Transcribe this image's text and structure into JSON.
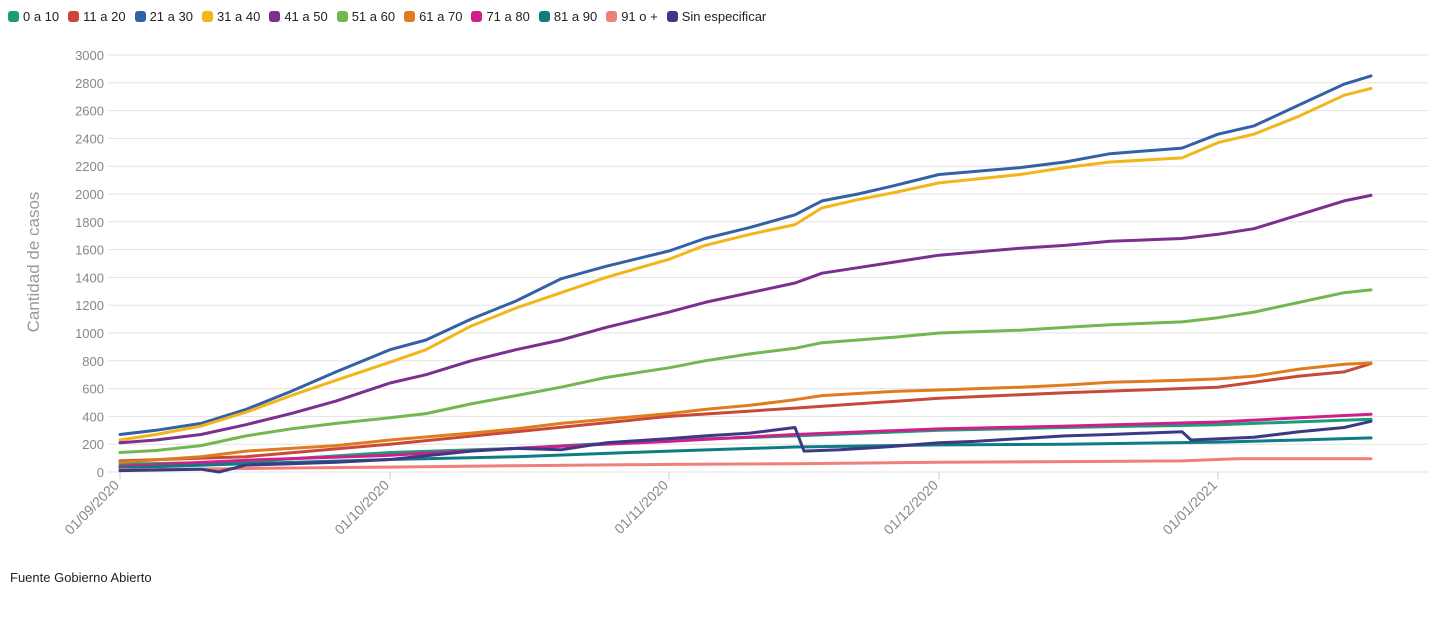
{
  "source_note": "Fuente Gobierno Abierto",
  "chart_data": {
    "type": "line",
    "title": "",
    "ylabel": "Cantidad de casos",
    "xlabel": "",
    "ylim": [
      0,
      3000
    ],
    "y_ticks": [
      0,
      200,
      400,
      600,
      800,
      1000,
      1200,
      1400,
      1600,
      1800,
      2000,
      2200,
      2400,
      2600,
      2800,
      3000
    ],
    "x_range": [
      "2020-09-01",
      "2021-01-18"
    ],
    "x_ticks": [
      "01/09/2020",
      "01/10/2020",
      "01/11/2020",
      "01/12/2020",
      "01/01/2021"
    ],
    "x_tick_dates": [
      "2020-09-01",
      "2020-10-01",
      "2020-11-01",
      "2020-12-01",
      "2021-01-01"
    ],
    "grid": true,
    "legend_position": "top-left",
    "series": [
      {
        "name": "0 a 10",
        "color": "#1a9e77",
        "points": [
          [
            "2020-09-01",
            55
          ],
          [
            "2020-09-15",
            75
          ],
          [
            "2020-10-01",
            140
          ],
          [
            "2020-10-15",
            170
          ],
          [
            "2020-11-01",
            230
          ],
          [
            "2020-11-15",
            260
          ],
          [
            "2020-12-01",
            300
          ],
          [
            "2020-12-15",
            320
          ],
          [
            "2021-01-01",
            340
          ],
          [
            "2021-01-18",
            380
          ]
        ]
      },
      {
        "name": "11 a 20",
        "color": "#c8493a",
        "points": [
          [
            "2020-09-01",
            80
          ],
          [
            "2020-09-15",
            110
          ],
          [
            "2020-10-01",
            200
          ],
          [
            "2020-10-15",
            290
          ],
          [
            "2020-11-01",
            400
          ],
          [
            "2020-11-15",
            460
          ],
          [
            "2020-12-01",
            530
          ],
          [
            "2020-12-15",
            570
          ],
          [
            "2021-01-01",
            610
          ],
          [
            "2021-01-10",
            690
          ],
          [
            "2021-01-15",
            720
          ],
          [
            "2021-01-18",
            780
          ]
        ]
      },
      {
        "name": "21 a 30",
        "color": "#3461a6",
        "points": [
          [
            "2020-09-01",
            270
          ],
          [
            "2020-09-05",
            300
          ],
          [
            "2020-09-10",
            350
          ],
          [
            "2020-09-15",
            450
          ],
          [
            "2020-09-20",
            580
          ],
          [
            "2020-09-25",
            720
          ],
          [
            "2020-10-01",
            880
          ],
          [
            "2020-10-05",
            950
          ],
          [
            "2020-10-10",
            1100
          ],
          [
            "2020-10-15",
            1230
          ],
          [
            "2020-10-20",
            1390
          ],
          [
            "2020-10-25",
            1480
          ],
          [
            "2020-11-01",
            1590
          ],
          [
            "2020-11-05",
            1680
          ],
          [
            "2020-11-10",
            1760
          ],
          [
            "2020-11-15",
            1850
          ],
          [
            "2020-11-18",
            1950
          ],
          [
            "2020-11-22",
            2000
          ],
          [
            "2020-11-26",
            2060
          ],
          [
            "2020-12-01",
            2140
          ],
          [
            "2020-12-10",
            2190
          ],
          [
            "2020-12-15",
            2230
          ],
          [
            "2020-12-20",
            2290
          ],
          [
            "2020-12-28",
            2330
          ],
          [
            "2021-01-01",
            2430
          ],
          [
            "2021-01-05",
            2490
          ],
          [
            "2021-01-10",
            2640
          ],
          [
            "2021-01-15",
            2790
          ],
          [
            "2021-01-18",
            2850
          ]
        ]
      },
      {
        "name": "31 a 40",
        "color": "#f2b51c",
        "points": [
          [
            "2020-09-01",
            230
          ],
          [
            "2020-09-05",
            270
          ],
          [
            "2020-09-10",
            330
          ],
          [
            "2020-09-15",
            430
          ],
          [
            "2020-09-20",
            550
          ],
          [
            "2020-09-25",
            660
          ],
          [
            "2020-10-01",
            790
          ],
          [
            "2020-10-05",
            880
          ],
          [
            "2020-10-10",
            1050
          ],
          [
            "2020-10-15",
            1180
          ],
          [
            "2020-10-20",
            1290
          ],
          [
            "2020-10-25",
            1400
          ],
          [
            "2020-11-01",
            1530
          ],
          [
            "2020-11-05",
            1630
          ],
          [
            "2020-11-10",
            1710
          ],
          [
            "2020-11-15",
            1780
          ],
          [
            "2020-11-18",
            1900
          ],
          [
            "2020-11-22",
            1960
          ],
          [
            "2020-11-26",
            2010
          ],
          [
            "2020-12-01",
            2080
          ],
          [
            "2020-12-10",
            2140
          ],
          [
            "2020-12-15",
            2190
          ],
          [
            "2020-12-20",
            2230
          ],
          [
            "2020-12-28",
            2260
          ],
          [
            "2021-01-01",
            2370
          ],
          [
            "2021-01-05",
            2430
          ],
          [
            "2021-01-10",
            2560
          ],
          [
            "2021-01-15",
            2710
          ],
          [
            "2021-01-18",
            2760
          ]
        ]
      },
      {
        "name": "41 a 50",
        "color": "#7b2f8e",
        "points": [
          [
            "2020-09-01",
            210
          ],
          [
            "2020-09-05",
            230
          ],
          [
            "2020-09-10",
            270
          ],
          [
            "2020-09-15",
            340
          ],
          [
            "2020-09-20",
            420
          ],
          [
            "2020-09-25",
            510
          ],
          [
            "2020-10-01",
            640
          ],
          [
            "2020-10-05",
            700
          ],
          [
            "2020-10-10",
            800
          ],
          [
            "2020-10-15",
            880
          ],
          [
            "2020-10-20",
            950
          ],
          [
            "2020-10-25",
            1040
          ],
          [
            "2020-11-01",
            1150
          ],
          [
            "2020-11-05",
            1220
          ],
          [
            "2020-11-10",
            1290
          ],
          [
            "2020-11-15",
            1360
          ],
          [
            "2020-11-18",
            1430
          ],
          [
            "2020-11-22",
            1470
          ],
          [
            "2020-11-26",
            1510
          ],
          [
            "2020-12-01",
            1560
          ],
          [
            "2020-12-10",
            1610
          ],
          [
            "2020-12-15",
            1630
          ],
          [
            "2020-12-20",
            1660
          ],
          [
            "2020-12-28",
            1680
          ],
          [
            "2021-01-01",
            1710
          ],
          [
            "2021-01-05",
            1750
          ],
          [
            "2021-01-10",
            1850
          ],
          [
            "2021-01-15",
            1950
          ],
          [
            "2021-01-18",
            1990
          ]
        ]
      },
      {
        "name": "51 a 60",
        "color": "#72b84f",
        "points": [
          [
            "2020-09-01",
            140
          ],
          [
            "2020-09-05",
            155
          ],
          [
            "2020-09-10",
            190
          ],
          [
            "2020-09-15",
            260
          ],
          [
            "2020-09-20",
            310
          ],
          [
            "2020-09-25",
            350
          ],
          [
            "2020-10-01",
            390
          ],
          [
            "2020-10-05",
            420
          ],
          [
            "2020-10-10",
            490
          ],
          [
            "2020-10-15",
            550
          ],
          [
            "2020-10-20",
            610
          ],
          [
            "2020-10-25",
            680
          ],
          [
            "2020-11-01",
            750
          ],
          [
            "2020-11-05",
            800
          ],
          [
            "2020-11-10",
            850
          ],
          [
            "2020-11-15",
            890
          ],
          [
            "2020-11-18",
            930
          ],
          [
            "2020-11-22",
            950
          ],
          [
            "2020-11-26",
            970
          ],
          [
            "2020-12-01",
            1000
          ],
          [
            "2020-12-10",
            1020
          ],
          [
            "2020-12-15",
            1040
          ],
          [
            "2020-12-20",
            1060
          ],
          [
            "2020-12-28",
            1080
          ],
          [
            "2021-01-01",
            1110
          ],
          [
            "2021-01-05",
            1150
          ],
          [
            "2021-01-10",
            1220
          ],
          [
            "2021-01-15",
            1290
          ],
          [
            "2021-01-18",
            1310
          ]
        ]
      },
      {
        "name": "61 a 70",
        "color": "#e07b1f",
        "points": [
          [
            "2020-09-01",
            70
          ],
          [
            "2020-09-10",
            110
          ],
          [
            "2020-09-15",
            150
          ],
          [
            "2020-09-25",
            190
          ],
          [
            "2020-10-01",
            230
          ],
          [
            "2020-10-10",
            280
          ],
          [
            "2020-10-15",
            310
          ],
          [
            "2020-10-20",
            350
          ],
          [
            "2020-10-25",
            380
          ],
          [
            "2020-11-01",
            420
          ],
          [
            "2020-11-05",
            450
          ],
          [
            "2020-11-10",
            480
          ],
          [
            "2020-11-15",
            520
          ],
          [
            "2020-11-18",
            550
          ],
          [
            "2020-11-22",
            565
          ],
          [
            "2020-11-26",
            580
          ],
          [
            "2020-12-01",
            590
          ],
          [
            "2020-12-10",
            610
          ],
          [
            "2020-12-15",
            625
          ],
          [
            "2020-12-20",
            645
          ],
          [
            "2020-12-28",
            660
          ],
          [
            "2021-01-01",
            670
          ],
          [
            "2021-01-05",
            690
          ],
          [
            "2021-01-10",
            740
          ],
          [
            "2021-01-15",
            775
          ],
          [
            "2021-01-18",
            785
          ]
        ]
      },
      {
        "name": "71 a 80",
        "color": "#d01f8c",
        "points": [
          [
            "2020-09-01",
            40
          ],
          [
            "2020-09-15",
            85
          ],
          [
            "2020-10-01",
            120
          ],
          [
            "2020-10-15",
            170
          ],
          [
            "2020-11-01",
            220
          ],
          [
            "2020-11-15",
            270
          ],
          [
            "2020-12-01",
            310
          ],
          [
            "2020-12-15",
            330
          ],
          [
            "2021-01-01",
            360
          ],
          [
            "2021-01-10",
            390
          ],
          [
            "2021-01-18",
            415
          ]
        ]
      },
      {
        "name": "81 a 90",
        "color": "#0f7c84",
        "points": [
          [
            "2020-09-01",
            30
          ],
          [
            "2020-09-15",
            60
          ],
          [
            "2020-10-01",
            90
          ],
          [
            "2020-10-15",
            110
          ],
          [
            "2020-11-01",
            150
          ],
          [
            "2020-11-15",
            180
          ],
          [
            "2020-12-01",
            195
          ],
          [
            "2020-12-15",
            200
          ],
          [
            "2021-01-01",
            215
          ],
          [
            "2021-01-10",
            230
          ],
          [
            "2021-01-18",
            245
          ]
        ]
      },
      {
        "name": "91 o +",
        "color": "#f07f78",
        "points": [
          [
            "2020-09-01",
            15
          ],
          [
            "2020-09-15",
            25
          ],
          [
            "2020-10-01",
            35
          ],
          [
            "2020-10-15",
            45
          ],
          [
            "2020-11-01",
            55
          ],
          [
            "2020-11-15",
            60
          ],
          [
            "2020-12-01",
            70
          ],
          [
            "2020-12-15",
            75
          ],
          [
            "2020-12-28",
            80
          ],
          [
            "2021-01-03",
            95
          ],
          [
            "2021-01-18",
            95
          ]
        ]
      },
      {
        "name": "Sin especificar",
        "color": "#3c3a85",
        "points": [
          [
            "2020-09-01",
            10
          ],
          [
            "2020-09-10",
            20
          ],
          [
            "2020-09-12",
            0
          ],
          [
            "2020-09-15",
            50
          ],
          [
            "2020-09-20",
            60
          ],
          [
            "2020-09-25",
            70
          ],
          [
            "2020-10-01",
            90
          ],
          [
            "2020-10-10",
            150
          ],
          [
            "2020-10-15",
            170
          ],
          [
            "2020-10-20",
            160
          ],
          [
            "2020-10-25",
            210
          ],
          [
            "2020-11-01",
            240
          ],
          [
            "2020-11-05",
            260
          ],
          [
            "2020-11-10",
            280
          ],
          [
            "2020-11-15",
            320
          ],
          [
            "2020-11-16",
            150
          ],
          [
            "2020-11-20",
            160
          ],
          [
            "2020-11-25",
            180
          ],
          [
            "2020-12-01",
            210
          ],
          [
            "2020-12-05",
            220
          ],
          [
            "2020-12-10",
            240
          ],
          [
            "2020-12-15",
            260
          ],
          [
            "2020-12-20",
            270
          ],
          [
            "2020-12-28",
            290
          ],
          [
            "2020-12-29",
            230
          ],
          [
            "2021-01-05",
            250
          ],
          [
            "2021-01-10",
            290
          ],
          [
            "2021-01-15",
            320
          ],
          [
            "2021-01-18",
            365
          ]
        ]
      }
    ]
  }
}
